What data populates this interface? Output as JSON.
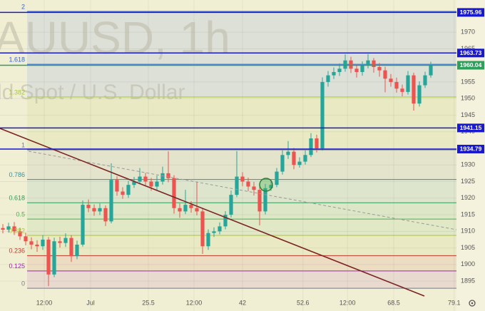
{
  "chart_data": {
    "type": "candlestick",
    "watermark": [
      "AUUSD, 1h",
      "ld Spot / U.S. Dollar"
    ],
    "x": [
      0,
      1,
      2,
      3,
      4,
      5,
      6,
      7,
      8,
      9,
      10,
      11,
      12,
      13,
      14,
      15,
      16,
      17,
      18,
      19,
      20,
      21,
      22,
      23,
      24,
      25,
      26,
      27,
      28,
      29,
      30,
      31,
      32,
      33,
      34,
      35,
      36,
      37,
      38,
      39,
      40,
      41,
      42,
      43,
      44,
      45,
      46,
      47,
      48,
      49,
      50,
      51,
      52,
      53,
      54,
      55,
      56,
      57,
      58,
      59,
      60,
      61,
      62,
      63,
      64,
      65,
      66,
      67,
      68,
      69,
      70,
      71,
      72,
      73,
      74,
      75
    ],
    "open": [
      1911,
      1910.5,
      1911.5,
      1910,
      1908.5,
      1907,
      1906,
      1905.5,
      1907.5,
      1897,
      1907,
      1906.5,
      1908,
      1902.5,
      1906,
      1918,
      1917,
      1916,
      1917,
      1913,
      1925.5,
      1922,
      1921,
      1924,
      1925,
      1926.5,
      1925,
      1923.5,
      1925,
      1927.5,
      1926,
      1917,
      1916,
      1918,
      1917,
      1916,
      1905.5,
      1909.5,
      1910,
      1911.5,
      1915,
      1921,
      1926.5,
      1925,
      1923.5,
      1922.5,
      1916,
      1923,
      1924,
      1928,
      1933,
      1934,
      1930,
      1931,
      1933,
      1938,
      1935,
      1955,
      1957,
      1958,
      1959,
      1961.5,
      1959,
      1958,
      1960,
      1961.5,
      1959.5,
      1958.5,
      1956,
      1955,
      1953,
      1952,
      1957,
      1948.5,
      1954,
      1957
    ],
    "high": [
      1912.2,
      1912.6,
      1912.8,
      1911.1,
      1909.6,
      1908.2,
      1907.3,
      1908.9,
      1908.3,
      1908.1,
      1908.4,
      1909.4,
      1908.9,
      1907.2,
      1919.3,
      1919.6,
      1918.1,
      1918.4,
      1917.8,
      1930.5,
      1926.6,
      1923.3,
      1925.2,
      1926.4,
      1929.1,
      1927.6,
      1926.1,
      1926.8,
      1929.5,
      1934.1,
      1926.9,
      1918.4,
      1922.5,
      1919.1,
      1924.9,
      1917.1,
      1910.6,
      1911.2,
      1912.7,
      1916.1,
      1922.3,
      1934.2,
      1927.8,
      1926.2,
      1924.9,
      1923.4,
      1924.3,
      1925.6,
      1929.1,
      1934.4,
      1937.2,
      1935.1,
      1932.3,
      1934.4,
      1939.6,
      1939.1,
      1956.4,
      1958.3,
      1959.4,
      1960.6,
      1963.3,
      1962.6,
      1960.4,
      1961.2,
      1963.4,
      1962.2,
      1960.7,
      1959.6,
      1957.4,
      1956.3,
      1954.2,
      1958.3,
      1957.8,
      1955.2,
      1958.1,
      1961.1
    ],
    "low": [
      1909.4,
      1909.6,
      1908.9,
      1907.4,
      1905.8,
      1904.6,
      1903.8,
      1904.4,
      1893.5,
      1896.2,
      1905.1,
      1905.3,
      1900.8,
      1901.6,
      1905.4,
      1915.8,
      1914.7,
      1914.9,
      1911.6,
      1912.4,
      1920.7,
      1919.8,
      1920.1,
      1923.1,
      1924.2,
      1923.9,
      1922.2,
      1922.4,
      1924.1,
      1924.8,
      1915.3,
      1914.1,
      1915.2,
      1915.6,
      1914.8,
      1903.2,
      1904.4,
      1908.3,
      1909.1,
      1910.6,
      1914.2,
      1920.3,
      1923.6,
      1922.1,
      1920.8,
      1911.8,
      1915.1,
      1922.2,
      1923.3,
      1927.1,
      1931.8,
      1928.7,
      1929.2,
      1930.1,
      1932.4,
      1933.8,
      1934.3,
      1953.6,
      1955.9,
      1956.8,
      1958.1,
      1957.7,
      1956.3,
      1956.9,
      1959.1,
      1957.8,
      1956.6,
      1951.9,
      1953.6,
      1951.8,
      1950.7,
      1951.2,
      1946.4,
      1947.6,
      1953.2,
      1956.3
    ],
    "close": [
      1910.5,
      1911.5,
      1910,
      1908.5,
      1907,
      1906,
      1905.5,
      1907.5,
      1897,
      1907,
      1906.5,
      1908,
      1902.5,
      1906,
      1918,
      1917,
      1916,
      1917,
      1913,
      1925.5,
      1922,
      1921,
      1924,
      1925,
      1926.5,
      1925,
      1923.5,
      1925,
      1927.5,
      1926,
      1917,
      1916,
      1918,
      1917,
      1916,
      1905.5,
      1909.5,
      1910,
      1911.5,
      1915,
      1921,
      1926.5,
      1925,
      1923.5,
      1922.5,
      1916,
      1923,
      1924,
      1928,
      1933,
      1934,
      1930,
      1931,
      1933,
      1938,
      1935,
      1955,
      1957,
      1958,
      1959,
      1961.5,
      1959,
      1958,
      1960,
      1961.5,
      1959.5,
      1958.5,
      1956,
      1955,
      1953,
      1952,
      1957,
      1948.5,
      1954,
      1957,
      1960.04
    ],
    "up_color": "#26a69a",
    "down_color": "#ef5350",
    "xlim": [
      -0.5,
      79.5
    ],
    "xticks": [
      {
        "value": 7.25,
        "label": "12:00"
      },
      {
        "value": 15.375,
        "label": "Jul"
      },
      25.5,
      {
        "value": 33.5,
        "label": "12:00"
      },
      42,
      52.6,
      {
        "value": 60.4,
        "label": "12:00"
      },
      68.5,
      79.1
    ],
    "ylim": [
      1886,
      1979.7
    ],
    "yticks": [
      1895,
      1900,
      1905,
      1910,
      1915,
      1920,
      1925,
      1930,
      1935,
      1940,
      1945,
      1950,
      1955,
      1960,
      1965,
      1970
    ],
    "grid": true,
    "fib": {
      "low": 1892.85,
      "high": 1934.55,
      "levels": [
        {
          "ratio": 0,
          "color": "#787b86"
        },
        {
          "ratio": 0.125,
          "color": "#9c27b0"
        },
        {
          "ratio": 0.236,
          "color": "#c0392b"
        },
        {
          "ratio": 0.382,
          "color": "#a5c73a"
        },
        {
          "ratio": 0.5,
          "color": "#4caf50"
        },
        {
          "ratio": 0.618,
          "color": "#2e9e5b"
        },
        {
          "ratio": 0.786,
          "color": "#3d8f9c"
        },
        {
          "ratio": 1,
          "color": "#787b86"
        },
        {
          "ratio": 1.382,
          "color": "#a5c73a"
        },
        {
          "ratio": 1.618,
          "color": "#2962ff"
        },
        {
          "ratio": 2,
          "color": "#2962ff"
        }
      ]
    },
    "hlines": [
      {
        "value": 1975.96,
        "color": "#1818d0"
      },
      {
        "value": 1963.73,
        "color": "#1818d0"
      },
      {
        "value": 1960.04,
        "color": "#2e9e5b"
      },
      {
        "value": 1941.15,
        "color": "#1818d0"
      },
      {
        "value": 1934.79,
        "color": "#1818d0"
      }
    ]
  }
}
